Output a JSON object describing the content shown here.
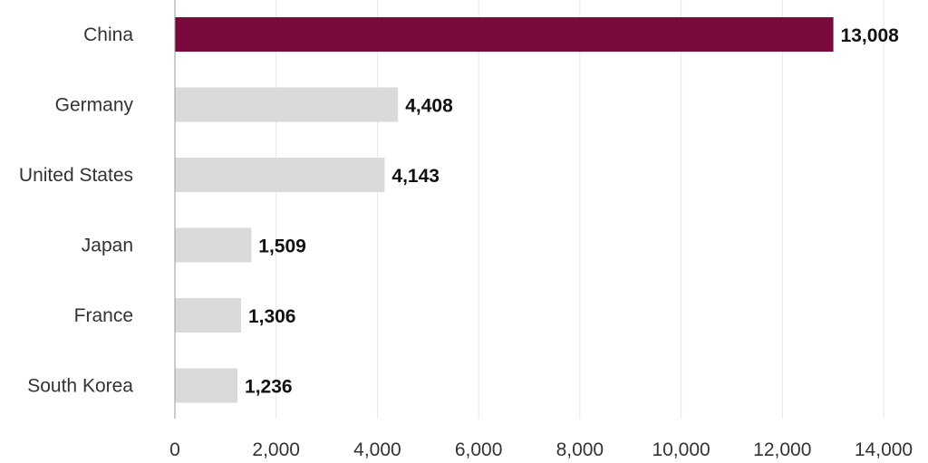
{
  "chart_data": {
    "type": "bar",
    "orientation": "horizontal",
    "categories": [
      "China",
      "Germany",
      "United States",
      "Japan",
      "France",
      "South Korea"
    ],
    "values": [
      13008,
      4408,
      4143,
      1509,
      1306,
      1236
    ],
    "value_labels": [
      "13,008",
      "4,408",
      "4,143",
      "1,509",
      "1,306",
      "1,236"
    ],
    "xlim": [
      0,
      14000
    ],
    "x_ticks": [
      0,
      2000,
      4000,
      6000,
      8000,
      10000,
      12000,
      14000
    ],
    "x_tick_labels": [
      "0",
      "2,000",
      "4,000",
      "6,000",
      "8,000",
      "10,000",
      "12,000",
      "14,000"
    ],
    "grid": "vertical",
    "highlight_index": 0,
    "colors": {
      "highlight": "#7a0a3d",
      "default": "#dadada"
    }
  }
}
